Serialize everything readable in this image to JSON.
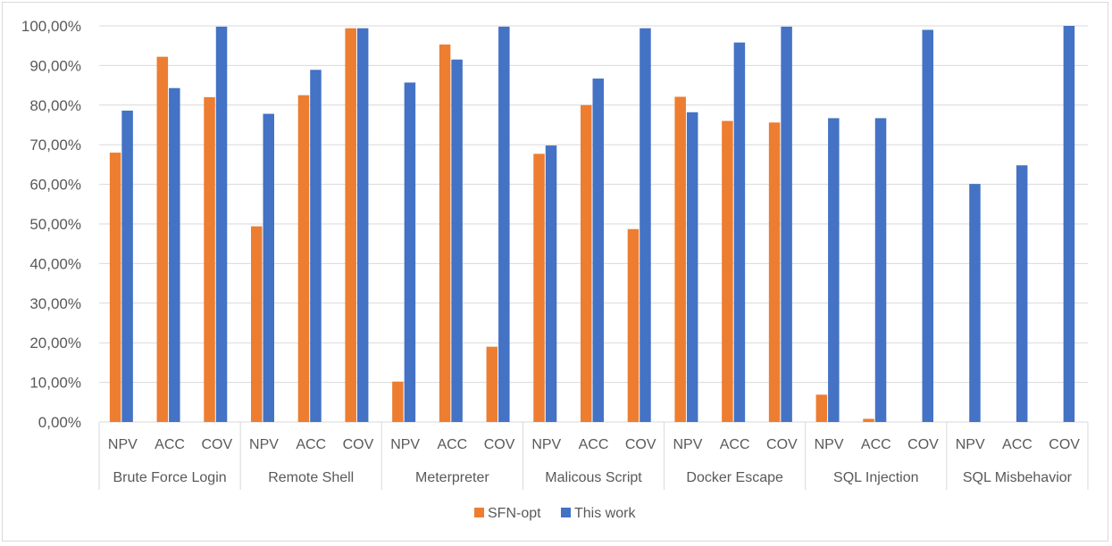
{
  "chart_data": {
    "type": "bar",
    "title": "",
    "xlabel": "",
    "ylabel": "",
    "ylim": [
      0,
      100
    ],
    "yticks": [
      "0,00%",
      "10,00%",
      "20,00%",
      "30,00%",
      "40,00%",
      "50,00%",
      "60,00%",
      "70,00%",
      "80,00%",
      "90,00%",
      "100,00%"
    ],
    "grid": true,
    "legend_position": "bottom",
    "groups": [
      "Brute Force Login",
      "Remote Shell",
      "Meterpreter",
      "Malicous Script",
      "Docker Escape",
      "SQL Injection",
      "SQL Misbehavior"
    ],
    "metrics": [
      "NPV",
      "ACC",
      "COV"
    ],
    "series": [
      {
        "name": "SFN-opt",
        "color": "#ed7d31",
        "values": [
          [
            68.0,
            92.2,
            82.0
          ],
          [
            49.4,
            82.5,
            99.4
          ],
          [
            10.2,
            95.3,
            19.0
          ],
          [
            67.7,
            80.0,
            48.7
          ],
          [
            82.1,
            76.0,
            75.6
          ],
          [
            6.9,
            0.8,
            0.0
          ],
          [
            0.0,
            0.0,
            0.0
          ]
        ]
      },
      {
        "name": "This work",
        "color": "#4472c4",
        "values": [
          [
            78.6,
            84.3,
            99.8
          ],
          [
            77.8,
            88.9,
            99.4
          ],
          [
            85.7,
            91.5,
            99.8
          ],
          [
            69.8,
            86.7,
            99.4
          ],
          [
            78.2,
            95.8,
            99.8
          ],
          [
            76.7,
            76.7,
            99.0
          ],
          [
            60.1,
            64.8,
            100.0
          ]
        ]
      }
    ]
  }
}
